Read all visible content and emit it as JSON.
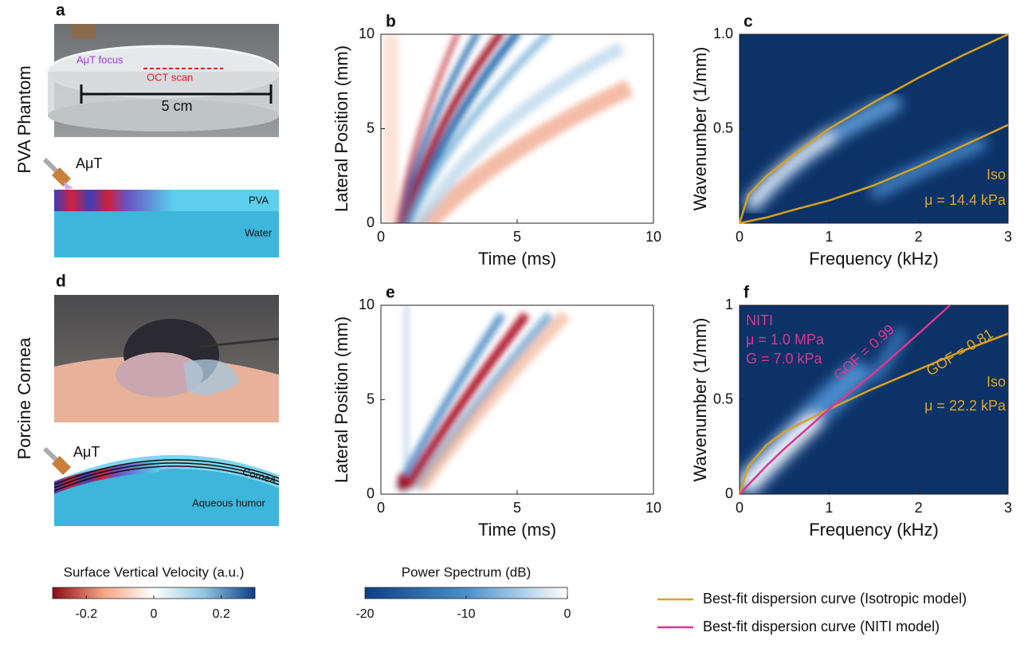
{
  "panel_labels": [
    "a",
    "b",
    "c",
    "d",
    "e",
    "f"
  ],
  "row_labels": [
    "PVA Phantom",
    "Porcine Cornea"
  ],
  "photo_a": {
    "focus_label": "AμT focus",
    "scan_label": "OCT scan",
    "scale_label": "5 cm"
  },
  "diagram_a": {
    "probe": "AμT",
    "layer_top": "PVA",
    "layer_bottom": "Water"
  },
  "diagram_d": {
    "probe": "AμT",
    "layer_top": "Cornea",
    "layer_bottom": "Aqueous humor"
  },
  "chart_data": [
    {
      "type": "heatmap",
      "xlabel": "Time (ms)",
      "ylabel": "Lateral Position (mm)",
      "xlim": [
        0,
        10
      ],
      "ylim": [
        0,
        10
      ],
      "xticks": [
        0,
        5,
        10
      ],
      "yticks": [
        0,
        5,
        10
      ]
    },
    {
      "type": "line",
      "xlabel": "Frequency (kHz)",
      "ylabel": "Wavenumber (1/mm)",
      "xlim": [
        0,
        3
      ],
      "ylim": [
        0,
        1
      ],
      "xticks": [
        0,
        1,
        2,
        3
      ],
      "yticks": [
        0.5,
        {
          "value": 1,
          "label": "1.0"
        }
      ],
      "x": [
        0,
        0.1,
        0.3,
        0.6,
        1,
        1.5,
        2,
        2.5,
        3
      ],
      "series": [
        {
          "color": "#d9a21b",
          "values": [
            0,
            0.15,
            0.25,
            0.36,
            0.5,
            0.64,
            0.77,
            0.89,
            1.0
          ]
        },
        {
          "color": "#d9a21b",
          "values": [
            0,
            0.01,
            0.03,
            0.07,
            0.12,
            0.2,
            0.3,
            0.41,
            0.52
          ]
        }
      ],
      "annotations": [
        {
          "text": "Iso",
          "color": "#e0a81c"
        },
        {
          "text": "μ = 14.4 kPa",
          "color": "#e0a81c"
        }
      ]
    },
    {
      "type": "heatmap",
      "xlabel": "Time (ms)",
      "ylabel": "Lateral Position (mm)",
      "xlim": [
        0,
        10
      ],
      "ylim": [
        0,
        10
      ],
      "xticks": [
        0,
        5,
        10
      ],
      "yticks": [
        0,
        5,
        10
      ]
    },
    {
      "type": "line",
      "xlabel": "Frequency (kHz)",
      "ylabel": "Wavenumber (1/mm)",
      "xlim": [
        0,
        3
      ],
      "ylim": [
        0,
        1
      ],
      "xticks": [
        0,
        1,
        2,
        3
      ],
      "yticks": [
        0,
        0.5,
        1
      ],
      "x": [
        0,
        0.1,
        0.3,
        0.5,
        1,
        1.5,
        2,
        2.35,
        2.5,
        3
      ],
      "series": [
        {
          "name": "Best-fit dispersion curve (Isotropic model)",
          "color": "#d9a21b",
          "values": [
            0,
            0.15,
            0.26,
            0.33,
            0.45,
            0.56,
            0.66,
            0.73,
            0.76,
            0.85
          ]
        },
        {
          "name": "Best-fit dispersion curve (NITI model)",
          "color": "#e0358f",
          "values": [
            0,
            0.05,
            0.15,
            0.24,
            0.45,
            0.64,
            0.85,
            1.0,
            null,
            null
          ]
        }
      ],
      "annotations": [
        {
          "text": "NITI",
          "color": "#e0358f"
        },
        {
          "text": "μ = 1.0 MPa",
          "color": "#e0358f"
        },
        {
          "text": "G = 7.0 kPa",
          "color": "#e0358f"
        },
        {
          "text": "GOF = 0.99",
          "color": "#e0358f"
        },
        {
          "text": "GOF = 0.81",
          "color": "#e0a81c"
        },
        {
          "text": "Iso",
          "color": "#e0a81c"
        },
        {
          "text": "μ = 22.2 kPa",
          "color": "#e0a81c"
        }
      ]
    },
    {
      "type": "colorbar",
      "title": "Surface Vertical Velocity (a.u.)",
      "xlim": [
        -0.3,
        0.3
      ],
      "xticks": [
        -0.2,
        0,
        0.2
      ],
      "colors": [
        "#8b0a1a",
        "#f4a582",
        "#ffffff",
        "#92c5de",
        "#0c3f86"
      ]
    },
    {
      "type": "colorbar",
      "title": "Power Spectrum (dB)",
      "xlim": [
        -20,
        0
      ],
      "xticks": [
        -20,
        -10,
        0
      ],
      "colors": [
        "#0c3f86",
        "#4a90c8",
        "#ffffff"
      ]
    }
  ]
}
